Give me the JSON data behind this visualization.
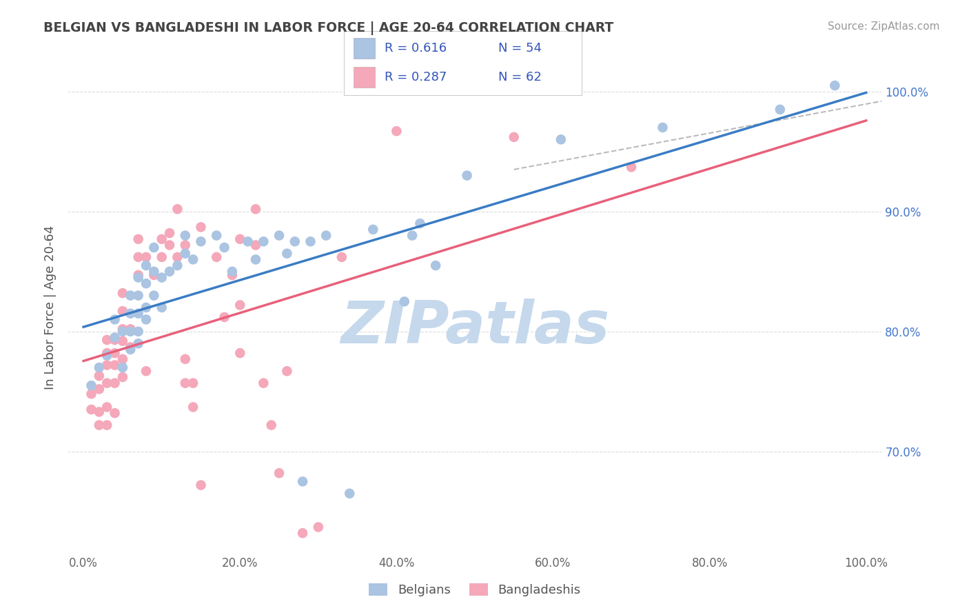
{
  "title": "BELGIAN VS BANGLADESHI IN LABOR FORCE | AGE 20-64 CORRELATION CHART",
  "source": "Source: ZipAtlas.com",
  "ylabel": "In Labor Force | Age 20-64",
  "xlim": [
    -0.02,
    1.02
  ],
  "ylim": [
    0.615,
    1.025
  ],
  "ytick_vals": [
    0.7,
    0.8,
    0.9,
    1.0
  ],
  "ytick_labels": [
    "70.0%",
    "80.0%",
    "90.0%",
    "100.0%"
  ],
  "xtick_vals": [
    0.0,
    0.2,
    0.4,
    0.6,
    0.8,
    1.0
  ],
  "xtick_labels": [
    "0.0%",
    "20.0%",
    "40.0%",
    "60.0%",
    "80.0%",
    "100.0%"
  ],
  "belgian_color": "#aac4e2",
  "bangladeshi_color": "#f4a8ba",
  "belgian_line_color": "#3a7cc4",
  "bangladeshi_line_color": "#e8607a",
  "watermark_text": "ZIPatlas",
  "watermark_color": "#c5d8ec",
  "legend_R_belgian": "0.616",
  "legend_N_belgian": "54",
  "legend_R_bangladeshi": "0.287",
  "legend_N_bangladeshi": "62",
  "legend_text_color": "#3355bb",
  "tick_color": "#4477cc",
  "title_color": "#444444",
  "source_color": "#999999",
  "ylabel_color": "#555555",
  "grid_color": "#dddddd",
  "dashed_line_color": "#bbbbbb",
  "belgian_scatter": [
    [
      0.01,
      0.755
    ],
    [
      0.02,
      0.77
    ],
    [
      0.03,
      0.78
    ],
    [
      0.04,
      0.795
    ],
    [
      0.04,
      0.81
    ],
    [
      0.05,
      0.77
    ],
    [
      0.05,
      0.8
    ],
    [
      0.06,
      0.785
    ],
    [
      0.06,
      0.8
    ],
    [
      0.06,
      0.815
    ],
    [
      0.06,
      0.83
    ],
    [
      0.07,
      0.79
    ],
    [
      0.07,
      0.8
    ],
    [
      0.07,
      0.815
    ],
    [
      0.07,
      0.83
    ],
    [
      0.07,
      0.845
    ],
    [
      0.08,
      0.81
    ],
    [
      0.08,
      0.82
    ],
    [
      0.08,
      0.84
    ],
    [
      0.08,
      0.855
    ],
    [
      0.09,
      0.83
    ],
    [
      0.09,
      0.85
    ],
    [
      0.09,
      0.87
    ],
    [
      0.1,
      0.82
    ],
    [
      0.1,
      0.845
    ],
    [
      0.11,
      0.85
    ],
    [
      0.12,
      0.855
    ],
    [
      0.13,
      0.865
    ],
    [
      0.13,
      0.88
    ],
    [
      0.14,
      0.86
    ],
    [
      0.15,
      0.875
    ],
    [
      0.17,
      0.88
    ],
    [
      0.18,
      0.87
    ],
    [
      0.19,
      0.85
    ],
    [
      0.21,
      0.875
    ],
    [
      0.22,
      0.86
    ],
    [
      0.23,
      0.875
    ],
    [
      0.25,
      0.88
    ],
    [
      0.26,
      0.865
    ],
    [
      0.27,
      0.875
    ],
    [
      0.28,
      0.675
    ],
    [
      0.29,
      0.875
    ],
    [
      0.31,
      0.88
    ],
    [
      0.34,
      0.665
    ],
    [
      0.37,
      0.885
    ],
    [
      0.41,
      0.825
    ],
    [
      0.42,
      0.88
    ],
    [
      0.43,
      0.89
    ],
    [
      0.45,
      0.855
    ],
    [
      0.49,
      0.93
    ],
    [
      0.61,
      0.96
    ],
    [
      0.74,
      0.97
    ],
    [
      0.89,
      0.985
    ],
    [
      0.96,
      1.005
    ]
  ],
  "bangladeshi_scatter": [
    [
      0.01,
      0.735
    ],
    [
      0.01,
      0.748
    ],
    [
      0.02,
      0.722
    ],
    [
      0.02,
      0.733
    ],
    [
      0.02,
      0.752
    ],
    [
      0.02,
      0.763
    ],
    [
      0.03,
      0.722
    ],
    [
      0.03,
      0.737
    ],
    [
      0.03,
      0.757
    ],
    [
      0.03,
      0.772
    ],
    [
      0.03,
      0.782
    ],
    [
      0.03,
      0.793
    ],
    [
      0.04,
      0.732
    ],
    [
      0.04,
      0.757
    ],
    [
      0.04,
      0.772
    ],
    [
      0.04,
      0.782
    ],
    [
      0.04,
      0.793
    ],
    [
      0.05,
      0.762
    ],
    [
      0.05,
      0.777
    ],
    [
      0.05,
      0.792
    ],
    [
      0.05,
      0.802
    ],
    [
      0.05,
      0.817
    ],
    [
      0.05,
      0.832
    ],
    [
      0.06,
      0.787
    ],
    [
      0.06,
      0.802
    ],
    [
      0.07,
      0.847
    ],
    [
      0.07,
      0.862
    ],
    [
      0.07,
      0.877
    ],
    [
      0.08,
      0.767
    ],
    [
      0.08,
      0.862
    ],
    [
      0.09,
      0.847
    ],
    [
      0.1,
      0.862
    ],
    [
      0.1,
      0.877
    ],
    [
      0.11,
      0.872
    ],
    [
      0.11,
      0.882
    ],
    [
      0.12,
      0.862
    ],
    [
      0.12,
      0.902
    ],
    [
      0.13,
      0.757
    ],
    [
      0.13,
      0.777
    ],
    [
      0.13,
      0.872
    ],
    [
      0.14,
      0.737
    ],
    [
      0.14,
      0.757
    ],
    [
      0.15,
      0.672
    ],
    [
      0.15,
      0.887
    ],
    [
      0.17,
      0.862
    ],
    [
      0.18,
      0.812
    ],
    [
      0.19,
      0.847
    ],
    [
      0.2,
      0.782
    ],
    [
      0.2,
      0.822
    ],
    [
      0.2,
      0.877
    ],
    [
      0.22,
      0.872
    ],
    [
      0.22,
      0.902
    ],
    [
      0.23,
      0.757
    ],
    [
      0.24,
      0.722
    ],
    [
      0.25,
      0.682
    ],
    [
      0.26,
      0.767
    ],
    [
      0.28,
      0.632
    ],
    [
      0.3,
      0.637
    ],
    [
      0.33,
      0.862
    ],
    [
      0.4,
      0.967
    ],
    [
      0.55,
      0.962
    ],
    [
      0.7,
      0.937
    ]
  ]
}
